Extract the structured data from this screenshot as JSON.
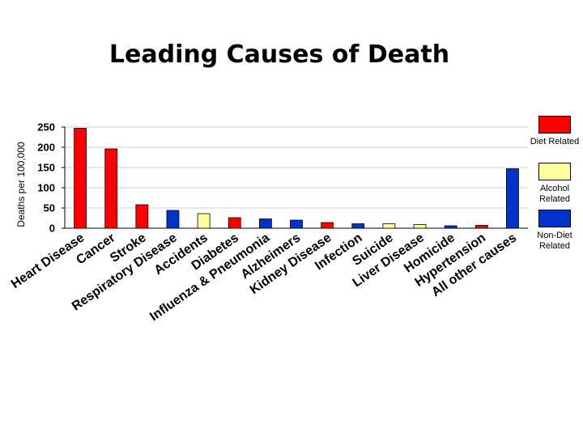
{
  "chart_data": {
    "type": "bar",
    "title": "Leading Causes of Death",
    "ylabel": "Deaths per 100,000",
    "xlabel": "",
    "ylim": [
      0,
      250
    ],
    "yticks": [
      0,
      50,
      100,
      150,
      200,
      250
    ],
    "grid": true,
    "legend_position": "right",
    "categories": [
      "Heart Disease",
      "Cancer",
      "Stroke",
      "Respiratory Disease",
      "Accidents",
      "Diabetes",
      "Influenza & Pneumonia",
      "Alzheimers",
      "Kidney Disease",
      "Infection",
      "Suicide",
      "Liver Disease",
      "Homicide",
      "Hypertension",
      "All other causes"
    ],
    "values": [
      247,
      196,
      58,
      44,
      36,
      26,
      23,
      20,
      14,
      11,
      11,
      9,
      6,
      7,
      147
    ],
    "groups": [
      "diet",
      "diet",
      "diet",
      "nondiet",
      "alcohol",
      "diet",
      "nondiet",
      "nondiet",
      "diet",
      "nondiet",
      "alcohol",
      "alcohol",
      "nondiet",
      "diet",
      "nondiet"
    ],
    "legend": [
      {
        "key": "diet",
        "label": "Diet Related",
        "color": "#ff0000"
      },
      {
        "key": "alcohol",
        "label": "Alcohol Related",
        "color": "#ffffa0"
      },
      {
        "key": "nondiet",
        "label": "Non-Diet Related",
        "color": "#0033cc"
      }
    ]
  }
}
